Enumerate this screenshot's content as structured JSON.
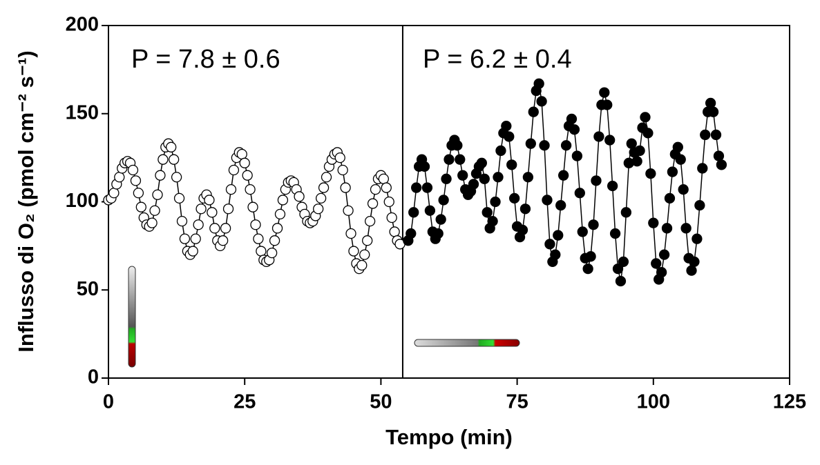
{
  "chart_data": {
    "type": "scatter",
    "x_label": "Tempo (min)",
    "y_label": "Influsso di O₂ (pmol cm⁻² s⁻¹)",
    "annotations": [
      "P = 7.8 ± 0.6",
      "P = 6.2 ± 0.4"
    ],
    "vline": 54,
    "xlim": [
      0,
      125
    ],
    "xticks": [
      0,
      25,
      50,
      75,
      100,
      125
    ],
    "ylim": [
      0,
      200
    ],
    "yticks": [
      0,
      50,
      100,
      150,
      200
    ],
    "line_color": "#000000",
    "series": [
      {
        "color": "#ffffff",
        "x": [
          0,
          0.5,
          1,
          1.5,
          2,
          2.5,
          3,
          3.5,
          4,
          4.5,
          5,
          5.5,
          6,
          6.5,
          7,
          7.5,
          8,
          8.5,
          9,
          9.5,
          10,
          10.5,
          11,
          11.5,
          12,
          12.5,
          13,
          13.5,
          14,
          14.5,
          15,
          15.5,
          16,
          16.5,
          17,
          17.5,
          18,
          18.5,
          19,
          19.5,
          20,
          20.5,
          21,
          21.5,
          22,
          22.5,
          23,
          23.5,
          24,
          24.5,
          25,
          25.5,
          26,
          26.5,
          27,
          27.5,
          28,
          28.5,
          29,
          29.5,
          30,
          30.5,
          31,
          31.5,
          32,
          32.5,
          33,
          33.5,
          34,
          34.5,
          35,
          35.5,
          36,
          36.5,
          37,
          37.5,
          38,
          38.5,
          39,
          39.5,
          40,
          40.5,
          41,
          41.5,
          42,
          42.5,
          43,
          43.5,
          44,
          44.5,
          45,
          45.5,
          46,
          46.5,
          47,
          47.5,
          48,
          48.5,
          49,
          49.5,
          50,
          50.5,
          51,
          51.5,
          52,
          52.5,
          53,
          53.5
        ],
        "values": [
          101,
          102,
          105,
          110,
          114,
          119,
          122,
          123,
          122,
          118,
          112,
          105,
          97,
          91,
          87,
          86,
          88,
          95,
          104,
          115,
          124,
          131,
          133,
          131,
          124,
          114,
          102,
          89,
          79,
          72,
          70,
          72,
          79,
          87,
          96,
          102,
          104,
          101,
          94,
          85,
          78,
          75,
          78,
          85,
          96,
          107,
          118,
          125,
          128,
          127,
          122,
          115,
          107,
          97,
          87,
          79,
          72,
          67,
          66,
          67,
          71,
          78,
          85,
          93,
          101,
          107,
          111,
          112,
          111,
          107,
          103,
          97,
          93,
          89,
          88,
          89,
          92,
          96,
          102,
          108,
          114,
          120,
          124,
          127,
          128,
          125,
          118,
          108,
          95,
          82,
          72,
          65,
          62,
          64,
          70,
          78,
          89,
          99,
          107,
          113,
          115,
          113,
          108,
          100,
          91,
          83,
          78,
          76
        ]
      },
      {
        "color": "#000000",
        "x": [
          55,
          55.5,
          56,
          56.5,
          57,
          57.5,
          58,
          58.5,
          59,
          59.5,
          60,
          60.5,
          61,
          61.5,
          62,
          62.5,
          63,
          63.5,
          64,
          64.5,
          65,
          65.5,
          66,
          66.5,
          67,
          67.5,
          68,
          68.5,
          69,
          69.5,
          70,
          70.5,
          71,
          71.5,
          72,
          72.5,
          73,
          73.5,
          74,
          74.5,
          75,
          75.5,
          76,
          76.5,
          77,
          77.5,
          78,
          78.5,
          79,
          79.5,
          80,
          80.5,
          81,
          81.5,
          82,
          82.5,
          83,
          83.5,
          84,
          84.5,
          85,
          85.5,
          86,
          86.5,
          87,
          87.5,
          88,
          88.5,
          89,
          89.5,
          90,
          90.5,
          91,
          91.5,
          92,
          92.5,
          93,
          93.5,
          94,
          94.5,
          95,
          95.5,
          96,
          96.5,
          97,
          97.5,
          98,
          98.5,
          99,
          99.5,
          100,
          100.5,
          101,
          101.5,
          102,
          102.5,
          103,
          103.5,
          104,
          104.5,
          105,
          105.5,
          106,
          106.5,
          107,
          107.5,
          108,
          108.5,
          109,
          109.5,
          110,
          110.5,
          111,
          111.5,
          112,
          112.5
        ],
        "values": [
          78,
          82,
          94,
          108,
          120,
          124,
          120,
          108,
          95,
          83,
          79,
          82,
          90,
          101,
          113,
          124,
          132,
          135,
          132,
          124,
          115,
          107,
          104,
          106,
          110,
          116,
          120,
          122,
          113,
          94,
          85,
          89,
          100,
          114,
          129,
          139,
          143,
          137,
          121,
          102,
          86,
          80,
          84,
          96,
          114,
          133,
          151,
          163,
          167,
          157,
          132,
          101,
          76,
          66,
          70,
          81,
          98,
          115,
          132,
          143,
          147,
          141,
          126,
          105,
          83,
          68,
          62,
          69,
          87,
          112,
          137,
          155,
          162,
          155,
          135,
          109,
          82,
          62,
          55,
          66,
          94,
          122,
          133,
          128,
          123,
          129,
          142,
          148,
          139,
          116,
          88,
          65,
          56,
          60,
          70,
          85,
          102,
          117,
          127,
          131,
          124,
          107,
          85,
          68,
          61,
          66,
          79,
          98,
          119,
          138,
          151,
          156,
          151,
          138,
          126,
          121
        ]
      }
    ]
  }
}
